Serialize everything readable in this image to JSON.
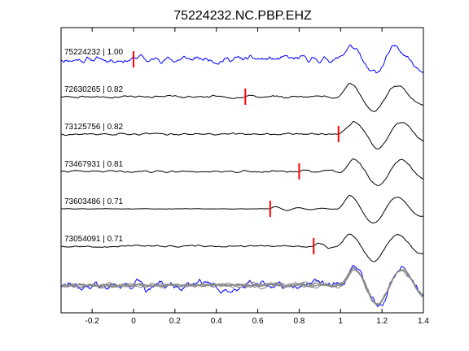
{
  "chart_data": {
    "type": "line",
    "title": "75224232.NC.PBP.EHZ",
    "xlabel": "",
    "ylabel": "",
    "xlim": [
      -0.35,
      1.4
    ],
    "x_ticks": [
      -0.2,
      0,
      0.2,
      0.4,
      0.6,
      0.8,
      1.0,
      1.2,
      1.4
    ],
    "x_tick_labels": [
      "-0.2",
      "0",
      "0.2",
      "0.4",
      "0.6",
      "0.8",
      "1",
      "1.2",
      "1.4"
    ],
    "grid": false,
    "colors": {
      "reference": "#0000ff",
      "trace": "#000000",
      "overlay": "#888888",
      "pick": "#ff0000",
      "axes": "#000000"
    },
    "series": [
      {
        "label": "75224232 | 1.00",
        "pick_time": 0.0,
        "reference": true
      },
      {
        "label": "72630265 | 0.82",
        "pick_time": 0.54
      },
      {
        "label": "73125756 | 0.82",
        "pick_time": 0.99
      },
      {
        "label": "73467931 | 0.81",
        "pick_time": 0.8
      },
      {
        "label": "73603486 | 0.71",
        "pick_time": 0.66
      },
      {
        "label": "73054091 | 0.71",
        "pick_time": 0.87
      }
    ]
  }
}
